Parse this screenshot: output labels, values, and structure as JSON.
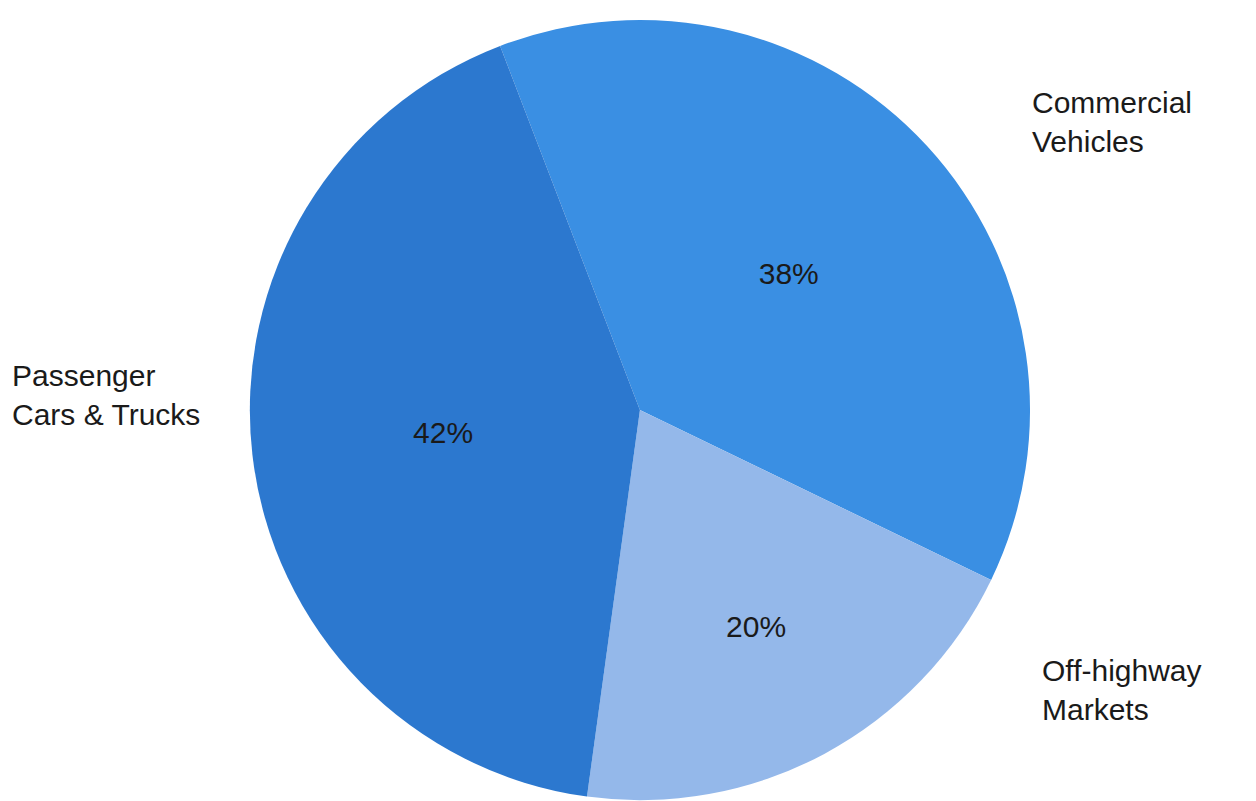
{
  "chart_data": {
    "type": "pie",
    "categories": [
      "Commercial Vehicles",
      "Off-highway Markets",
      "Passenger Cars & Trucks"
    ],
    "values": [
      38,
      20,
      42
    ],
    "value_labels": [
      "38%",
      "20%",
      "42%"
    ],
    "colors": [
      "#3a8fe3",
      "#94b8ea",
      "#2c78cf"
    ],
    "data_labels": true
  }
}
